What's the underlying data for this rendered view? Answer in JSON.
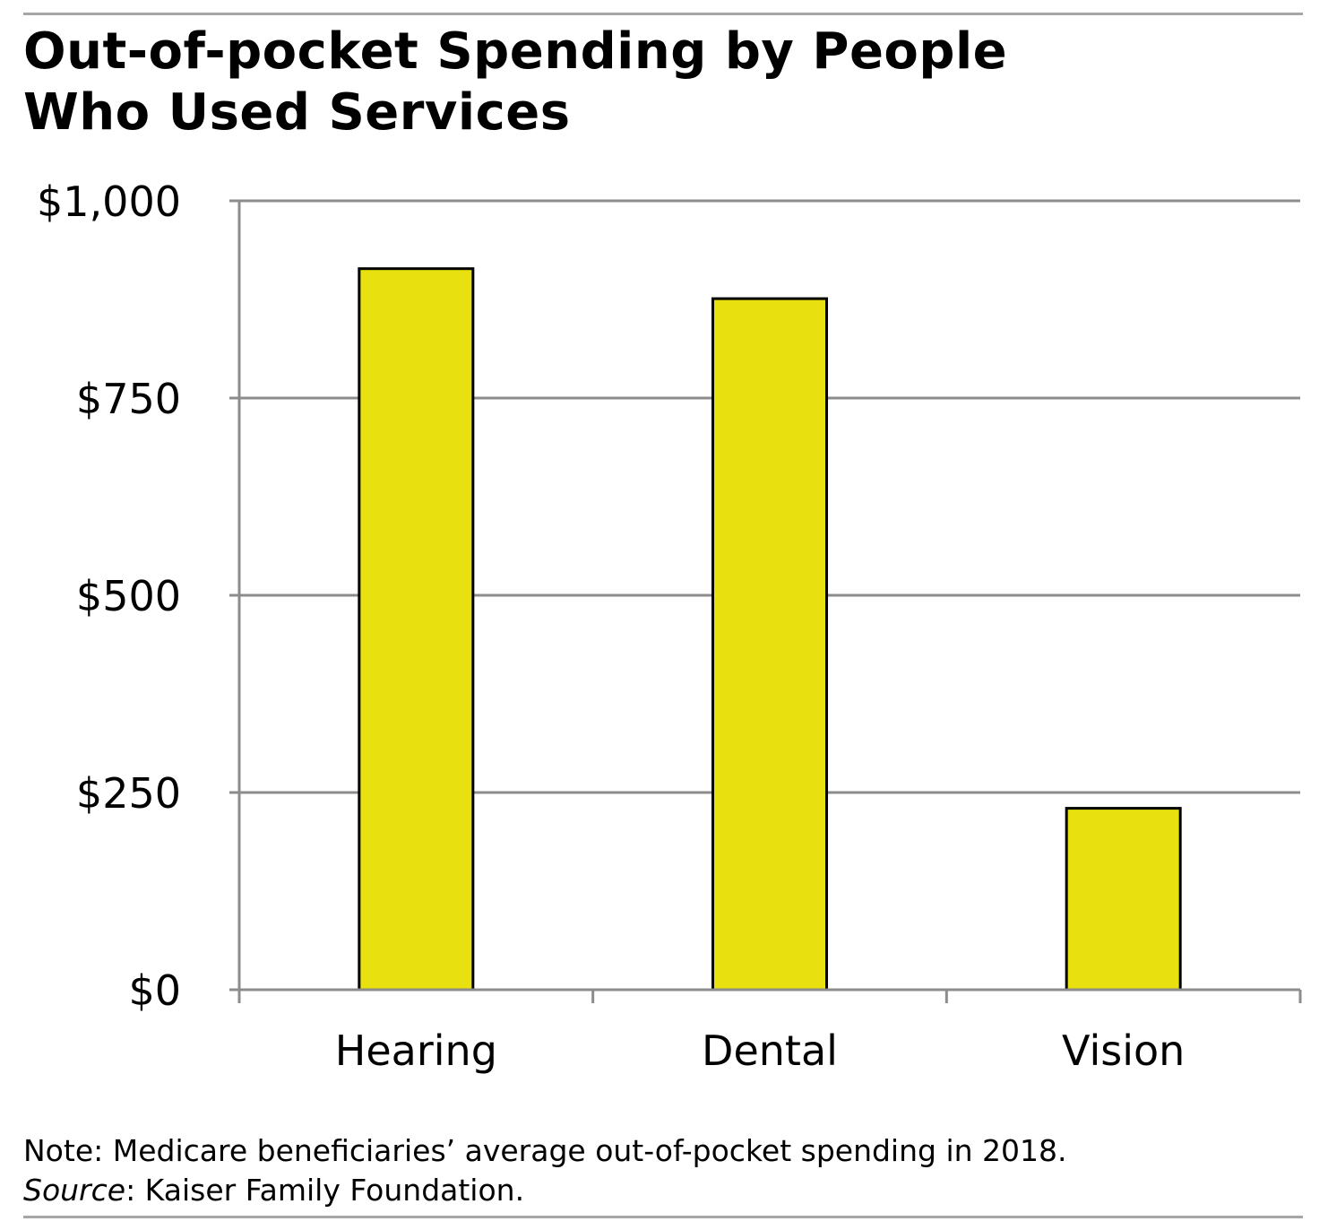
{
  "title_lines": [
    "Out-of-pocket Spending by People",
    "Who Used Services"
  ],
  "note": "Note: Medicare beneficiaries’ average out-of-pocket spending in 2018.",
  "source_label": "Source",
  "source_text": ": Kaiser Family Foundation.",
  "colors": {
    "bar": "#e8e10f",
    "bar_stroke": "#000000",
    "grid": "#8c8c8c",
    "axis": "#8c8c8c",
    "rule": "#a6a6a6"
  },
  "chart_data": {
    "type": "bar",
    "categories": [
      "Hearing",
      "Dental",
      "Vision"
    ],
    "values": [
      914,
      876,
      230
    ],
    "ylim": [
      0,
      1000
    ],
    "yticks": [
      0,
      250,
      500,
      750,
      1000
    ],
    "ytick_labels": [
      "$0",
      "$250",
      "$500",
      "$750",
      "$1,000"
    ],
    "grid": true,
    "legend": "none"
  }
}
